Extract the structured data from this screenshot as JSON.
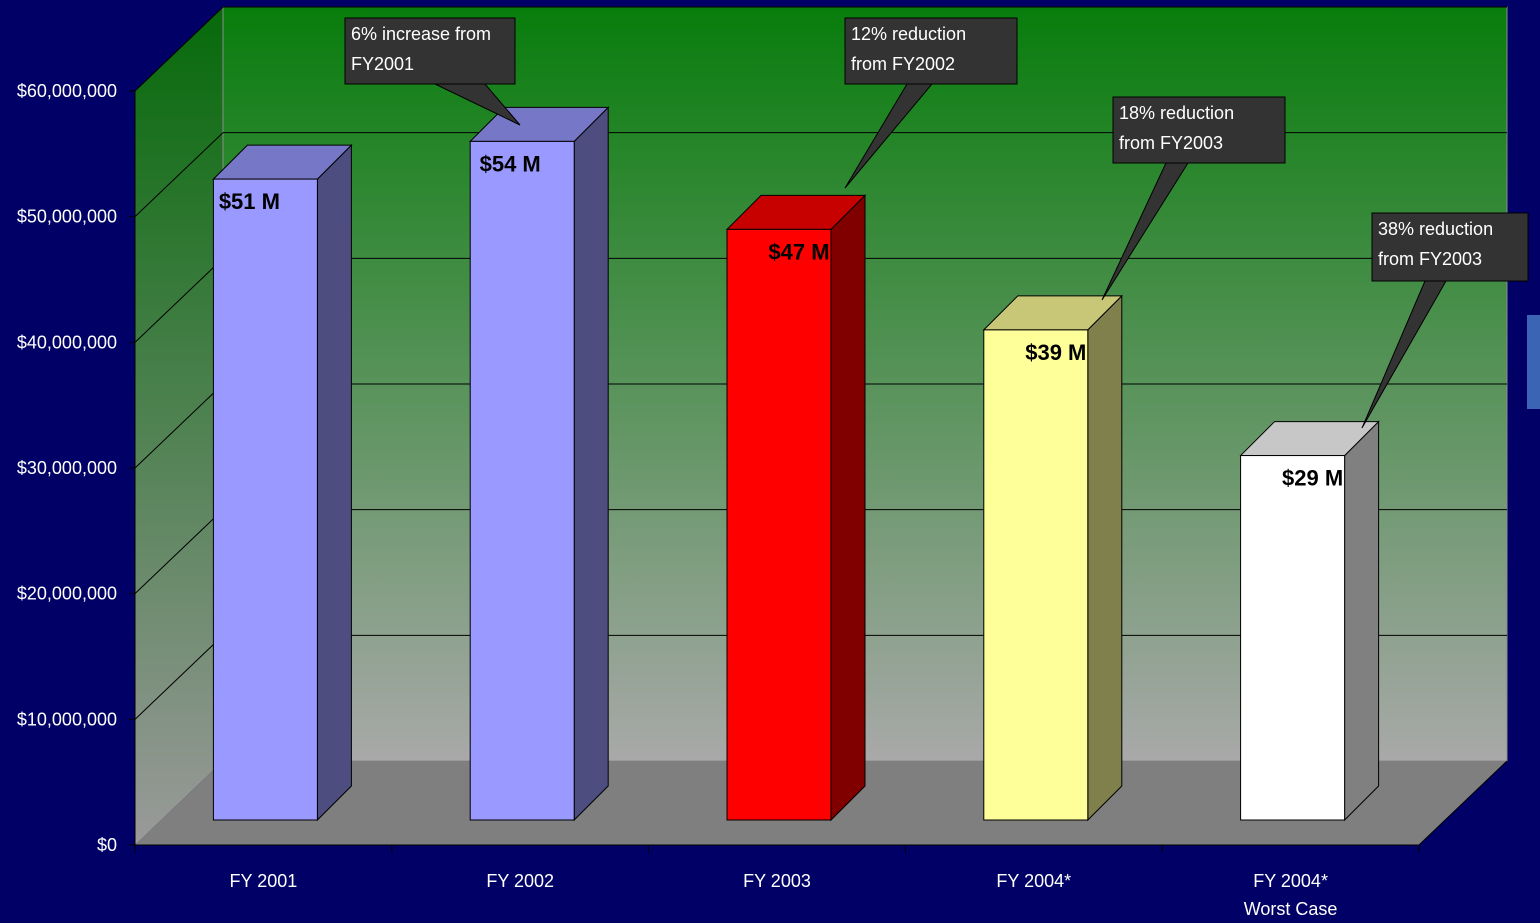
{
  "chart_data": {
    "type": "bar",
    "title": "",
    "xlabel": "",
    "ylabel": "",
    "ylim": [
      0,
      60000000
    ],
    "yticks": [
      0,
      10000000,
      20000000,
      30000000,
      40000000,
      50000000,
      60000000
    ],
    "ytick_labels": [
      "$0",
      "$10,000,000",
      "$20,000,000",
      "$30,000,000",
      "$40,000,000",
      "$50,000,000",
      "$60,000,000"
    ],
    "grid": true,
    "style": "3d",
    "categories": [
      {
        "line1": "FY 2001",
        "line2": ""
      },
      {
        "line1": "FY 2002",
        "line2": ""
      },
      {
        "line1": "FY 2003",
        "line2": ""
      },
      {
        "line1": "FY 2004*",
        "line2": ""
      },
      {
        "line1": "FY 2004*",
        "line2": "Worst Case"
      }
    ],
    "values": [
      51000000,
      54000000,
      47000000,
      39000000,
      29000000
    ],
    "data_labels": [
      "$51 M",
      "$54 M",
      "$47 M",
      "$39 M",
      "$29 M"
    ],
    "bar_colors": [
      "#9999ff",
      "#9999ff",
      "#ff0000",
      "#ffff99",
      "#ffffff"
    ],
    "annotations": [
      {
        "bar": 1,
        "line1": "6% increase from",
        "line2": "FY2001"
      },
      {
        "bar": 2,
        "line1": "12% reduction",
        "line2": "from FY2002"
      },
      {
        "bar": 3,
        "line1": "18% reduction",
        "line2": "from FY2003"
      },
      {
        "bar": 4,
        "line1": "38% reduction",
        "line2": "from FY2003"
      }
    ]
  }
}
